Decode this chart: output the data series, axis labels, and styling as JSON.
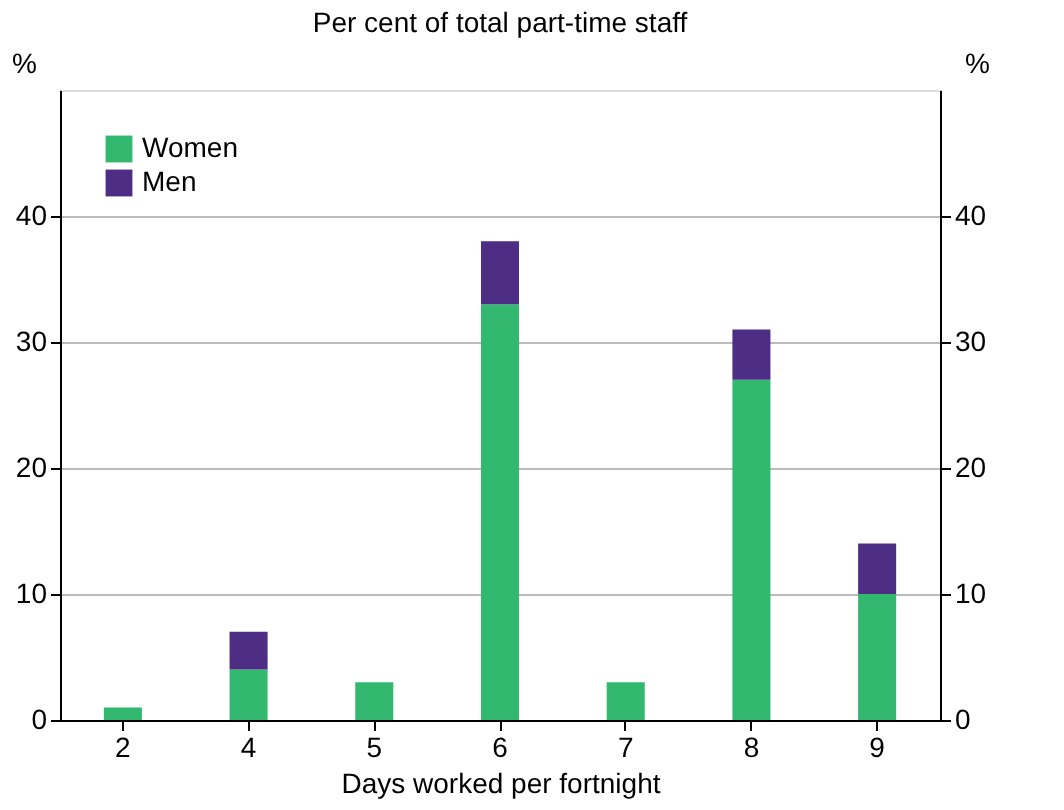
{
  "chart_data": {
    "type": "bar",
    "title": "Per cent of total part-time staff",
    "xlabel": "Days worked per fortnight",
    "ylabel": "%",
    "y2label": "%",
    "categories": [
      "2",
      "4",
      "5",
      "6",
      "7",
      "8",
      "9"
    ],
    "series": [
      {
        "name": "Women",
        "color": "#33b86f",
        "values": [
          1,
          4,
          3,
          33,
          3,
          27,
          10
        ]
      },
      {
        "name": "Men",
        "color": "#4e2d84",
        "values": [
          0,
          3,
          0,
          5,
          0,
          4,
          4
        ]
      }
    ],
    "stacked": true,
    "ylim": [
      0,
      50
    ],
    "yticks": [
      0,
      10,
      20,
      30,
      40
    ],
    "y2lim": [
      0,
      50
    ],
    "y2ticks": [
      0,
      10,
      20,
      30,
      40
    ],
    "grid": "y",
    "legend": "top left"
  }
}
